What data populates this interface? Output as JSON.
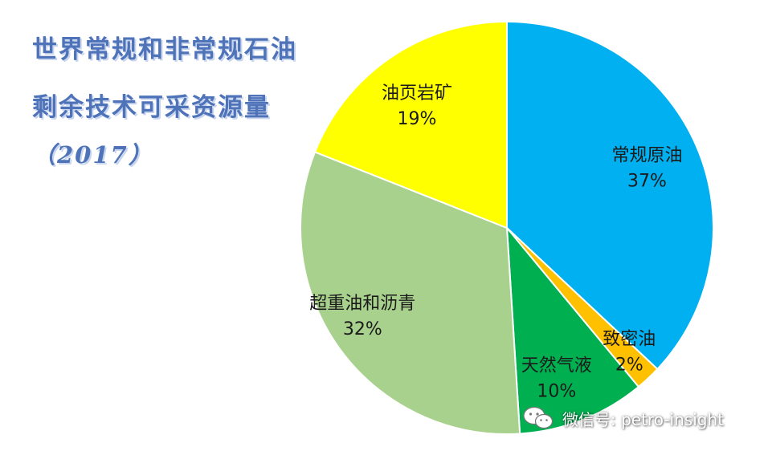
{
  "title_lines": [
    "世界常规和非常规石油",
    "剩余技术可采资源量",
    "（2017）"
  ],
  "chart_data": {
    "type": "pie",
    "title": "世界常规和非常规石油剩余技术可采资源量（2017）",
    "labels": [
      "常规原油",
      "致密油",
      "天然气液",
      "超重油和沥青",
      "油页岩矿"
    ],
    "values": [
      37,
      2,
      10,
      32,
      19
    ],
    "value_labels": [
      "37%",
      "2%",
      "10%",
      "32%",
      "19%"
    ],
    "colors": [
      "#00b0f0",
      "#ffc000",
      "#00b050",
      "#a9d18e",
      "#ffff00"
    ],
    "start_angle_deg": 0,
    "direction": "clockwise",
    "legend": "none"
  },
  "watermark": {
    "text": "微信号: petro-insight",
    "icon": "wechat-icon"
  }
}
